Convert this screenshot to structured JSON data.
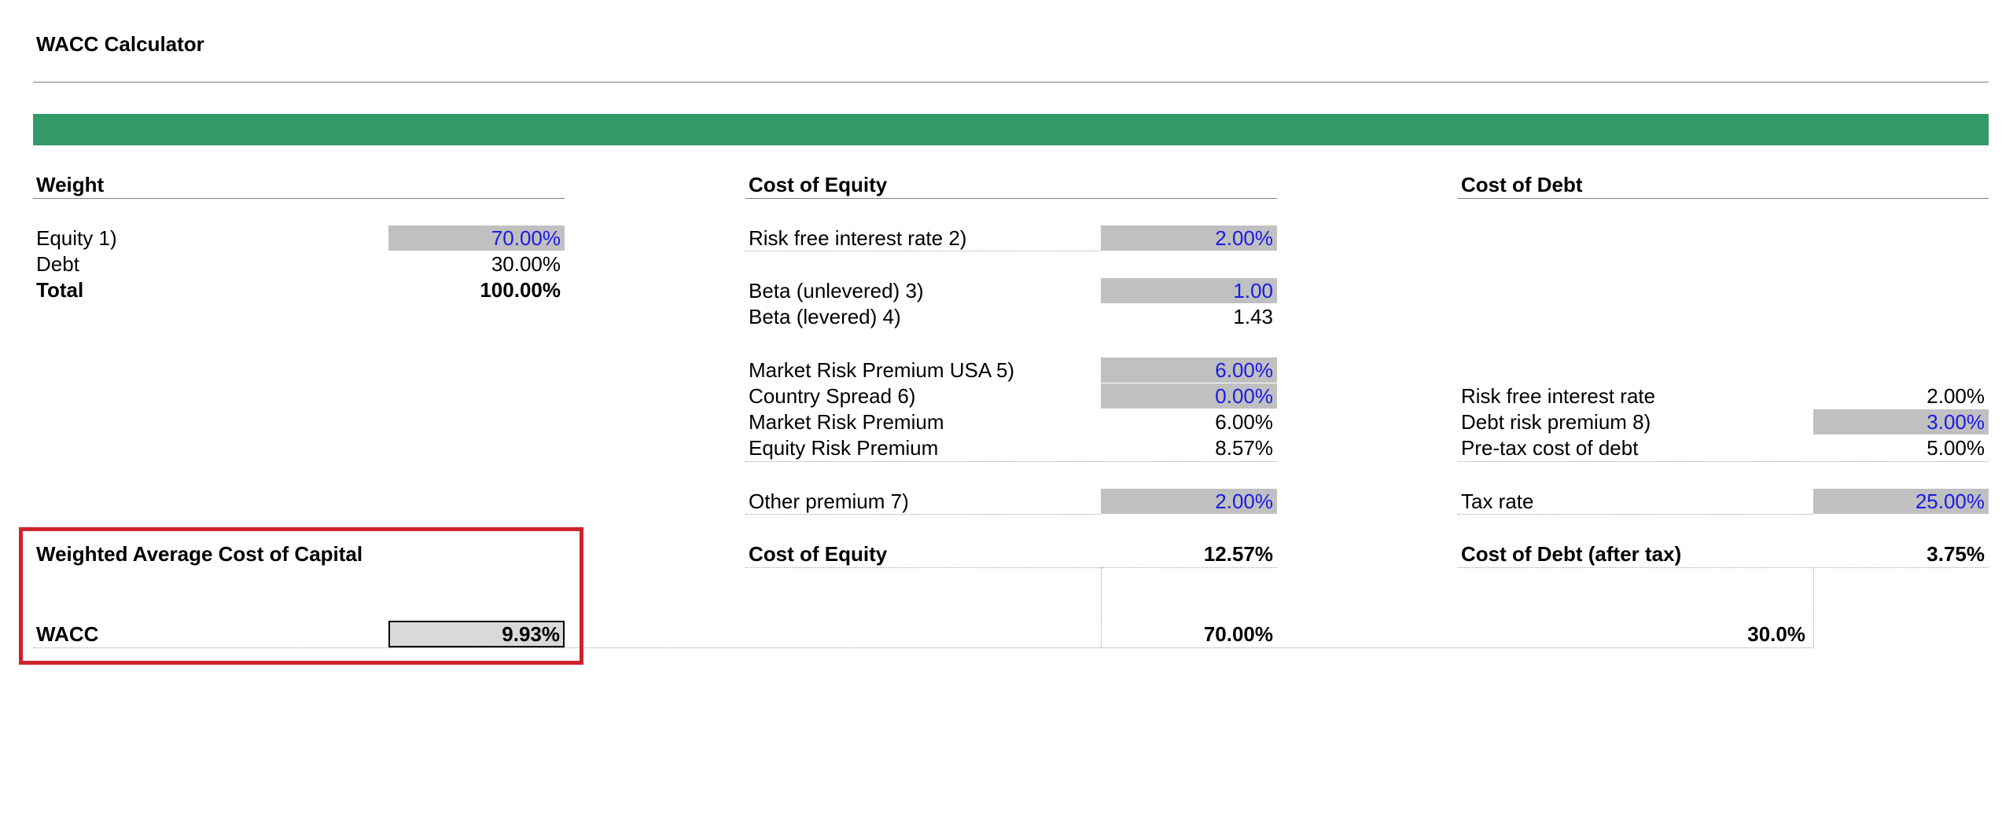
{
  "title": "WACC Calculator",
  "colors": {
    "header_bar": "#339966",
    "input_fill": "#c0c0c0",
    "input_text": "#1a1ae6",
    "highlight_frame": "#d0222d"
  },
  "weight": {
    "header": "Weight",
    "equity_label": "Equity 1)",
    "equity_value": "70.00%",
    "debt_label": "Debt",
    "debt_value": "30.00%",
    "total_label": "Total",
    "total_value": "100.00%"
  },
  "cost_of_equity": {
    "header": "Cost of Equity",
    "risk_free_label": "Risk free interest rate 2)",
    "risk_free_value": "2.00%",
    "beta_unlevered_label": "Beta (unlevered) 3)",
    "beta_unlevered_value": "1.00",
    "beta_levered_label": "Beta (levered) 4)",
    "beta_levered_value": "1.43",
    "mrp_usa_label": "Market Risk Premium USA 5)",
    "mrp_usa_value": "6.00%",
    "country_spread_label": "Country Spread 6)",
    "country_spread_value": "0.00%",
    "mrp_label": "Market Risk Premium",
    "mrp_value": "6.00%",
    "erp_label": "Equity Risk Premium",
    "erp_value": "8.57%",
    "other_premium_label": "Other premium 7)",
    "other_premium_value": "2.00%",
    "result_label": "Cost of Equity",
    "result_value": "12.57%",
    "weight_value": "70.00%"
  },
  "cost_of_debt": {
    "header": "Cost of Debt",
    "risk_free_label": "Risk free interest rate",
    "risk_free_value": "2.00%",
    "debt_risk_label": "Debt risk premium 8)",
    "debt_risk_value": "3.00%",
    "pretax_label": "Pre-tax cost of debt",
    "pretax_value": "5.00%",
    "tax_rate_label": "Tax rate",
    "tax_rate_value": "25.00%",
    "result_label": "Cost of Debt (after tax)",
    "result_value": "3.75%",
    "weight_value": "30.0%"
  },
  "wacc": {
    "section_label": "Weighted Average Cost of Capital",
    "label": "WACC",
    "value": "9.93%"
  }
}
